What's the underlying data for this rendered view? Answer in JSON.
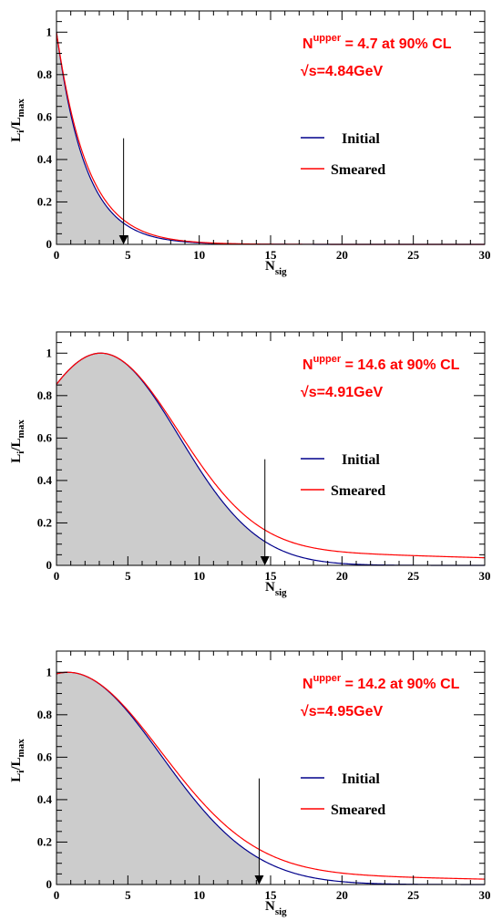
{
  "colors": {
    "initial": "#00008b",
    "smeared": "#ff0000",
    "fill": "#cccccc",
    "annotation": "#ff0000"
  },
  "chart_data": [
    {
      "type": "line",
      "xlim": [
        0,
        30
      ],
      "ylim": [
        0,
        1.1
      ],
      "xticks": [
        "0",
        "5",
        "10",
        "15",
        "20",
        "25",
        "30"
      ],
      "yticks": [
        "0",
        "0.2",
        "0.4",
        "0.6",
        "0.8",
        "1"
      ],
      "xlabel": "N",
      "xlabel_sub": "sig",
      "ylabel": "L",
      "ylabel_sub1": "i",
      "ylabel_mid": "/L",
      "ylabel_sub2": "max",
      "annotation_n": "N",
      "annotation_sup": "upper",
      "annotation_rest": " = 4.7 at 90% CL",
      "energy_label": "√s=4.84GeV",
      "upper_limit": 4.7,
      "arrow_top_y": 0.5,
      "legend_position": "right",
      "series": [
        {
          "name": "Initial",
          "shape": "exp",
          "params": {
            "lambda": 0.49
          }
        },
        {
          "name": "Smeared",
          "shape": "exp",
          "params": {
            "lambda": 0.46
          }
        }
      ]
    },
    {
      "type": "line",
      "xlim": [
        0,
        30
      ],
      "ylim": [
        0,
        1.1
      ],
      "xticks": [
        "0",
        "5",
        "10",
        "15",
        "20",
        "25",
        "30"
      ],
      "yticks": [
        "0",
        "0.2",
        "0.4",
        "0.6",
        "0.8",
        "1"
      ],
      "xlabel": "N",
      "xlabel_sub": "sig",
      "ylabel": "L",
      "ylabel_sub1": "i",
      "ylabel_mid": "/L",
      "ylabel_sub2": "max",
      "annotation_n": "N",
      "annotation_sup": "upper",
      "annotation_rest": " = 14.6 at 90% CL",
      "energy_label": "√s=4.91GeV",
      "upper_limit": 14.6,
      "arrow_top_y": 0.5,
      "legend_position": "right",
      "series": [
        {
          "name": "Initial",
          "shape": "gauss",
          "params": {
            "mu": 3.1,
            "sigma": 5.5
          }
        },
        {
          "name": "Smeared",
          "shape": "gauss_tail",
          "params": {
            "mu": 3.1,
            "sigma": 5.5,
            "tail": 0.015
          }
        }
      ]
    },
    {
      "type": "line",
      "xlim": [
        0,
        30
      ],
      "ylim": [
        0,
        1.1
      ],
      "xticks": [
        "0",
        "5",
        "10",
        "15",
        "20",
        "25",
        "30"
      ],
      "yticks": [
        "0",
        "0.2",
        "0.4",
        "0.6",
        "0.8",
        "1"
      ],
      "xlabel": "N",
      "xlabel_sub": "sig",
      "ylabel": "L",
      "ylabel_sub1": "i",
      "ylabel_mid": "/L",
      "ylabel_sub2": "max",
      "annotation_n": "N",
      "annotation_sup": "upper",
      "annotation_rest": " = 14.2 at 90% CL",
      "energy_label": "√s=4.95GeV",
      "upper_limit": 14.2,
      "arrow_top_y": 0.5,
      "legend_position": "right",
      "series": [
        {
          "name": "Initial",
          "shape": "gauss",
          "params": {
            "mu": 0.8,
            "sigma": 6.55
          }
        },
        {
          "name": "Smeared",
          "shape": "gauss_tail",
          "params": {
            "mu": 0.8,
            "sigma": 6.55,
            "tail": 0.012
          }
        }
      ]
    }
  ]
}
